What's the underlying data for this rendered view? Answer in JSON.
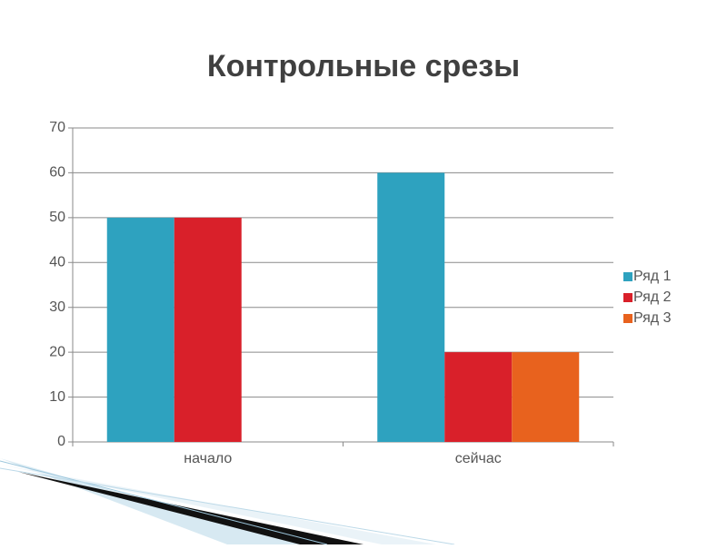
{
  "chart_data": {
    "type": "bar",
    "title": "Контрольные срезы",
    "categories": [
      "начало",
      "сейчас"
    ],
    "series": [
      {
        "name": "Ряд 1",
        "color": "#2ea2bf",
        "values": [
          50,
          60
        ]
      },
      {
        "name": "Ряд 2",
        "color": "#d9202a",
        "values": [
          50,
          20
        ]
      },
      {
        "name": "Ряд 3",
        "color": "#e8621e",
        "values": [
          null,
          20
        ]
      }
    ],
    "ylim": [
      0,
      70
    ],
    "yticks": [
      0,
      10,
      20,
      30,
      40,
      50,
      60,
      70
    ],
    "grid": true,
    "legend": "right"
  }
}
